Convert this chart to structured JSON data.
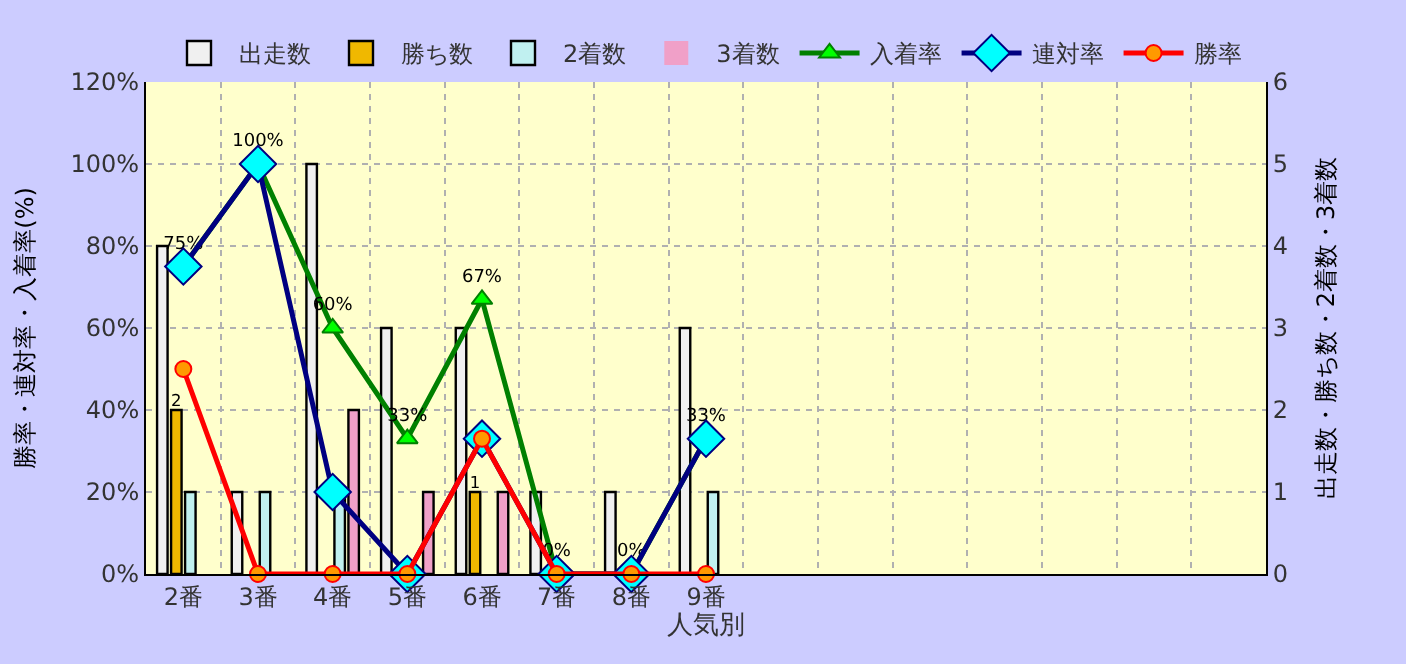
{
  "chart_data": {
    "type": "bar",
    "xlabel": "人気別",
    "ylabel": "勝率・連対率・入着率(%)",
    "y2label": "出走数・勝ち数・2着数・3着数",
    "categories": [
      "2番",
      "3番",
      "4番",
      "5番",
      "6番",
      "7番",
      "8番",
      "9番",
      null,
      null,
      null,
      null,
      null,
      null,
      null
    ],
    "series": [
      {
        "name": "出走数",
        "axis": "y2",
        "color": "#f0f0f0",
        "values": [
          4,
          1,
          5,
          3,
          3,
          1,
          1,
          3,
          null,
          null,
          null,
          null,
          null,
          null,
          null
        ]
      },
      {
        "name": "勝ち数",
        "axis": "y2",
        "color": "#f0b800",
        "values": [
          2,
          0,
          0,
          0,
          1,
          0,
          0,
          0,
          null,
          null,
          null,
          null,
          null,
          null,
          null
        ],
        "value_labels": [
          "2",
          null,
          null,
          null,
          "1",
          null,
          null,
          null,
          null,
          null,
          null,
          null,
          null,
          null,
          null
        ]
      },
      {
        "name": "2着数",
        "axis": "y2",
        "color": "#c0f0f0",
        "values": [
          1,
          1,
          1,
          0,
          0,
          0,
          0,
          1,
          null,
          null,
          null,
          null,
          null,
          null,
          null
        ]
      },
      {
        "name": "3着数",
        "axis": "y2",
        "color": "#f0a0c8",
        "values": [
          0,
          0,
          2,
          1,
          1,
          0,
          0,
          0,
          null,
          null,
          null,
          null,
          null,
          null,
          null
        ]
      },
      {
        "name": "入着率",
        "type": "line",
        "axis": "y",
        "color": "#008000",
        "marker": "triangle",
        "values": [
          75,
          100,
          60,
          33,
          67,
          0,
          0,
          33,
          null,
          null,
          null,
          null,
          null,
          null,
          null
        ],
        "value_labels": [
          "75%",
          "100%",
          "60%",
          "33%",
          "67%",
          "0%",
          "0%",
          "33%",
          null,
          null,
          null,
          null,
          null,
          null,
          null
        ]
      },
      {
        "name": "連対率",
        "type": "line",
        "axis": "y",
        "color": "#000080",
        "marker": "diamond",
        "values": [
          75,
          100,
          20,
          0,
          33,
          0,
          0,
          33,
          null,
          null,
          null,
          null,
          null,
          null,
          null
        ]
      },
      {
        "name": "勝率",
        "type": "line",
        "axis": "y",
        "color": "#ff0000",
        "marker": "circle",
        "values": [
          50,
          0,
          0,
          0,
          33,
          0,
          0,
          0,
          null,
          null,
          null,
          null,
          null,
          null,
          null
        ]
      }
    ],
    "ylim": [
      0,
      120
    ],
    "yticks": [
      {
        "value": 0,
        "label": "0%"
      },
      {
        "value": 20,
        "label": "20%"
      },
      {
        "value": 40,
        "label": "40%"
      },
      {
        "value": 60,
        "label": "60%"
      },
      {
        "value": 80,
        "label": "80%"
      },
      {
        "value": 100,
        "label": "100%"
      },
      {
        "value": 120,
        "label": "120%"
      }
    ],
    "y2lim": [
      0,
      6
    ],
    "y2ticks": [
      0,
      1,
      2,
      3,
      4,
      5,
      6
    ],
    "grid": true,
    "legend": "top"
  }
}
